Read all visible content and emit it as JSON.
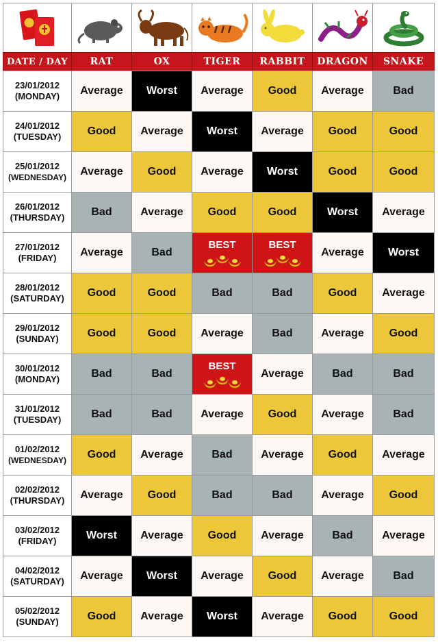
{
  "header": {
    "date_day_label": "DATE / DAY",
    "signs": [
      {
        "label": "RAT",
        "icon": "rat-icon"
      },
      {
        "label": "OX",
        "icon": "ox-icon"
      },
      {
        "label": "TIGER",
        "icon": "tiger-icon"
      },
      {
        "label": "RABBIT",
        "icon": "rabbit-icon"
      },
      {
        "label": "DRAGON",
        "icon": "dragon-icon"
      },
      {
        "label": "SNAKE",
        "icon": "snake-icon"
      }
    ],
    "corner_icon": "red-envelopes-icon"
  },
  "rating_colors": {
    "Average": "#fdf8f3",
    "Good": "#ecc73a",
    "Bad": "#a8b3b5",
    "Worst": "#000000",
    "BEST": "#cf1417"
  },
  "rows": [
    {
      "date": "23/01/2012",
      "day": "(MONDAY)",
      "ratings": [
        "Average",
        "Worst",
        "Average",
        "Good",
        "Average",
        "Bad"
      ]
    },
    {
      "date": "24/01/2012",
      "day": "(TUESDAY)",
      "ratings": [
        "Good",
        "Average",
        "Worst",
        "Average",
        "Good",
        "Good"
      ]
    },
    {
      "date": "25/01/2012",
      "day": "(WEDNESDAY)",
      "ratings": [
        "Average",
        "Good",
        "Average",
        "Worst",
        "Good",
        "Good"
      ]
    },
    {
      "date": "26/01/2012",
      "day": "(THURSDAY)",
      "ratings": [
        "Bad",
        "Average",
        "Good",
        "Good",
        "Worst",
        "Average"
      ]
    },
    {
      "date": "27/01/2012",
      "day": "(FRIDAY)",
      "ratings": [
        "Average",
        "Bad",
        "BEST",
        "BEST",
        "Average",
        "Worst"
      ]
    },
    {
      "date": "28/01/2012",
      "day": "(SATURDAY)",
      "ratings": [
        "Good",
        "Good",
        "Bad",
        "Bad",
        "Good",
        "Average"
      ]
    },
    {
      "date": "29/01/2012",
      "day": "(SUNDAY)",
      "ratings": [
        "Good",
        "Good",
        "Average",
        "Bad",
        "Average",
        "Good"
      ]
    },
    {
      "date": "30/01/2012",
      "day": "(MONDAY)",
      "ratings": [
        "Bad",
        "Bad",
        "BEST",
        "Average",
        "Bad",
        "Bad"
      ]
    },
    {
      "date": "31/01/2012",
      "day": "(TUESDAY)",
      "ratings": [
        "Bad",
        "Bad",
        "Average",
        "Good",
        "Average",
        "Bad"
      ]
    },
    {
      "date": "01/02/2012",
      "day": "(WEDNESDAY)",
      "ratings": [
        "Good",
        "Average",
        "Bad",
        "Average",
        "Good",
        "Average"
      ]
    },
    {
      "date": "02/02/2012",
      "day": "(THURSDAY)",
      "ratings": [
        "Average",
        "Good",
        "Bad",
        "Bad",
        "Average",
        "Good"
      ]
    },
    {
      "date": "03/02/2012",
      "day": "(FRIDAY)",
      "ratings": [
        "Worst",
        "Average",
        "Good",
        "Average",
        "Bad",
        "Average"
      ]
    },
    {
      "date": "04/02/2012",
      "day": "(SATURDAY)",
      "ratings": [
        "Average",
        "Worst",
        "Average",
        "Good",
        "Average",
        "Bad"
      ]
    },
    {
      "date": "05/02/2012",
      "day": "(SUNDAY)",
      "ratings": [
        "Good",
        "Average",
        "Worst",
        "Average",
        "Good",
        "Good"
      ]
    }
  ]
}
